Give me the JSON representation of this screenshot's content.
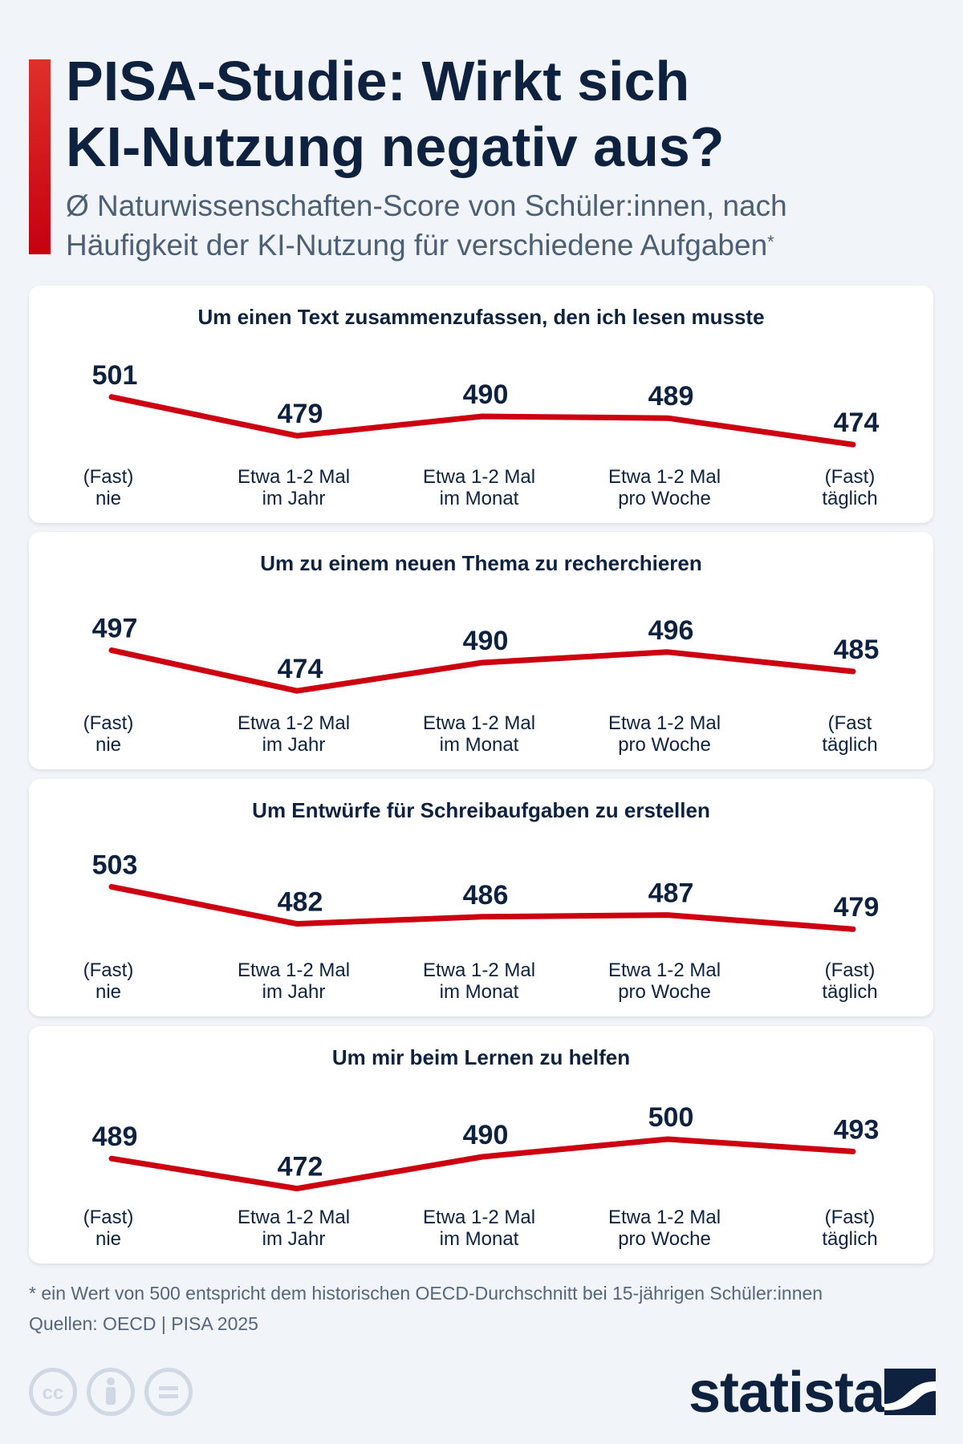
{
  "header": {
    "title_line1": "PISA-Studie: Wirkt sich",
    "title_line2": "KI-Nutzung negativ aus?",
    "subtitle_line1": "Ø Naturwissenschaften-Score von Schüler:innen, nach",
    "subtitle_line2": "Häufigkeit der KI-Nutzung für verschiedene Aufgaben",
    "subtitle_mark": "*"
  },
  "colors": {
    "line": "#cc0010",
    "accent": "#d8141c",
    "text": "#0e2240"
  },
  "chart_data": [
    {
      "type": "line",
      "title": "Um einen Text zusammenzufassen, den ich lesen musste",
      "categories": [
        [
          "(Fast)",
          "nie"
        ],
        [
          "Etwa 1-2 Mal",
          "im Jahr"
        ],
        [
          "Etwa 1-2 Mal",
          "im Monat"
        ],
        [
          "Etwa 1-2 Mal",
          "pro Woche"
        ],
        [
          "(Fast)",
          "täglich"
        ]
      ],
      "values": [
        501,
        479,
        490,
        489,
        474
      ]
    },
    {
      "type": "line",
      "title": "Um zu einem neuen Thema zu recherchieren",
      "categories": [
        [
          "(Fast)",
          "nie"
        ],
        [
          "Etwa 1-2 Mal",
          "im Jahr"
        ],
        [
          "Etwa 1-2 Mal",
          "im Monat"
        ],
        [
          "Etwa 1-2 Mal",
          "pro Woche"
        ],
        [
          "(Fast",
          "täglich"
        ]
      ],
      "values": [
        497,
        474,
        490,
        496,
        485
      ]
    },
    {
      "type": "line",
      "title": "Um Entwürfe für Schreibaufgaben zu erstellen",
      "categories": [
        [
          "(Fast)",
          "nie"
        ],
        [
          "Etwa 1-2 Mal",
          "im Jahr"
        ],
        [
          "Etwa 1-2 Mal",
          "im Monat"
        ],
        [
          "Etwa 1-2 Mal",
          "pro Woche"
        ],
        [
          "(Fast)",
          "täglich"
        ]
      ],
      "values": [
        503,
        482,
        486,
        487,
        479
      ]
    },
    {
      "type": "line",
      "title": "Um mir beim Lernen zu helfen",
      "categories": [
        [
          "(Fast)",
          "nie"
        ],
        [
          "Etwa 1-2 Mal",
          "im Jahr"
        ],
        [
          "Etwa 1-2 Mal",
          "im Monat"
        ],
        [
          "Etwa 1-2 Mal",
          "pro Woche"
        ],
        [
          "(Fast)",
          "täglich"
        ]
      ],
      "values": [
        489,
        472,
        490,
        500,
        493
      ]
    }
  ],
  "footer": {
    "footnote": "* ein Wert von 500 entspricht dem historischen OECD-Durchschnitt bei 15-jährigen Schüler:innen",
    "sources": "Quellen: OECD | PISA 2025",
    "brand": "statista",
    "license_icons": [
      "cc-icon",
      "by-icon",
      "nd-icon"
    ]
  }
}
